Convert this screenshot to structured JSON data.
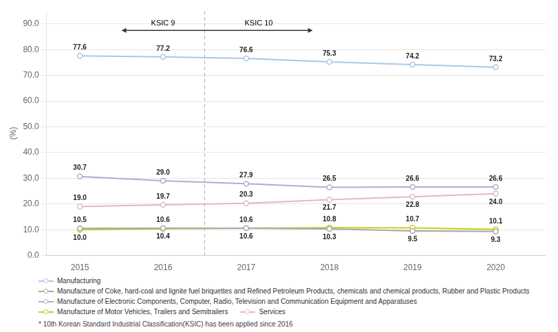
{
  "chart_data": {
    "type": "line",
    "ylabel": "(%)",
    "footnote": "* 10th Korean Standard Industrial Classification(KSIC) has been applied since 2016",
    "x": [
      2015,
      2016,
      2017,
      2018,
      2019,
      2020
    ],
    "xlim": [
      2014.6,
      2020.6
    ],
    "xticks": [
      2015,
      2016,
      2017,
      2018,
      2019,
      2020
    ],
    "ylim": [
      0,
      95
    ],
    "yticks": [
      {
        "value": 0,
        "label": "0.0"
      },
      {
        "value": 10,
        "label": "10.0"
      },
      {
        "value": 20,
        "label": "20.0"
      },
      {
        "value": 30,
        "label": "30.0"
      },
      {
        "value": 40,
        "label": "40.0"
      },
      {
        "value": 50,
        "label": "50.0"
      },
      {
        "value": 60,
        "label": "60.0"
      },
      {
        "value": 70,
        "label": "70.0"
      },
      {
        "value": 80,
        "label": "80.0"
      },
      {
        "value": 90,
        "label": "90.0"
      }
    ],
    "grid": "y",
    "legend": "bottom",
    "data_labels": true,
    "series": [
      {
        "name": "Manufacturing",
        "color": "#a8c8e8",
        "marker": "o",
        "values": [
          77.6,
          77.2,
          76.6,
          75.3,
          74.2,
          73.2
        ],
        "value_labels": [
          "77.6",
          "77.2",
          "76.6",
          "75.3",
          "74.2",
          "73.2"
        ]
      },
      {
        "name": "Manufacture of Coke, hard-coal and lignite fuel briquettes and Refined Petroleum Products, chemicals and chemical products, Rubber and Plastic Products",
        "color": "#a8a8a8",
        "marker": "o",
        "values": [
          10.5,
          10.6,
          10.6,
          10.3,
          9.5,
          9.3
        ],
        "value_labels": [
          "10.5",
          "10.6",
          "10.6",
          "10.3",
          "9.5",
          "9.3"
        ]
      },
      {
        "name": "Manufacture of Electronic Components, Computer, Radio, Television and Communication Equipment and Apparatuses",
        "color": "#b8a8d0",
        "marker": "o",
        "values": [
          30.7,
          29.0,
          27.9,
          26.5,
          26.6,
          26.6
        ],
        "value_labels": [
          "30.7",
          "29.0",
          "27.9",
          "26.5",
          "26.6",
          "26.6"
        ]
      },
      {
        "name": "Manufacture of Motor Vehicles, Trailers and Semitrailers",
        "color": "#c8cc20",
        "marker": "o",
        "values": [
          10.0,
          10.4,
          10.6,
          10.8,
          10.7,
          10.1
        ],
        "value_labels": [
          "10.0",
          "10.4",
          "10.6",
          "10.8",
          "10.7",
          "10.1"
        ]
      },
      {
        "name": "Services",
        "color": "#e8b8b8",
        "marker": "o",
        "values": [
          19.0,
          19.7,
          20.3,
          21.7,
          22.8,
          24.0
        ],
        "value_labels": [
          "19.0",
          "19.7",
          "20.3",
          "21.7",
          "22.8",
          "24.0"
        ]
      }
    ],
    "annotations": [
      {
        "type": "vline",
        "x": 2016.5,
        "line_style": "dashed"
      },
      {
        "type": "arrow",
        "x": [
          2015.5,
          2017.8
        ],
        "y": 87.5
      },
      {
        "type": "text",
        "text": "KSIC 9",
        "x": 2016.0,
        "y": 87.5
      },
      {
        "type": "text",
        "text": "KSIC 10",
        "x": 2017.15,
        "y": 87.5
      }
    ]
  }
}
